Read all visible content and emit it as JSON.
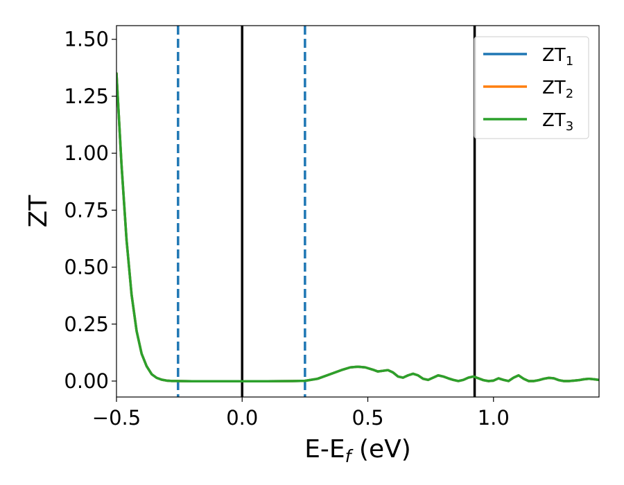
{
  "chart_data": {
    "type": "line",
    "title": "",
    "xlabel": "E-E",
    "xlabel_sub": "f",
    "xlabel_unit": " (eV)",
    "ylabel": "ZT",
    "xlim": [
      -0.5,
      1.42
    ],
    "ylim": [
      -0.07,
      1.56
    ],
    "xticks": [
      -0.5,
      0.0,
      0.5,
      1.0
    ],
    "xtick_labels": [
      "−0.5",
      "0.0",
      "0.5",
      "1.0"
    ],
    "yticks": [
      0.0,
      0.25,
      0.5,
      0.75,
      1.0,
      1.25,
      1.5
    ],
    "ytick_labels": [
      "0.00",
      "0.25",
      "0.50",
      "0.75",
      "1.00",
      "1.25",
      "1.50"
    ],
    "grid": false,
    "legend_position": "top-right",
    "vlines": [
      {
        "x": -0.255,
        "style": "dashed",
        "color": "#1f77b4"
      },
      {
        "x": 0.0,
        "style": "solid",
        "color": "#000000"
      },
      {
        "x": 0.25,
        "style": "dashed",
        "color": "#1f77b4"
      },
      {
        "x": 0.925,
        "style": "solid",
        "color": "#000000"
      }
    ],
    "series": [
      {
        "name": "ZT",
        "subscript": "1",
        "color": "#1f77b4",
        "x": [
          -0.5,
          -0.48,
          -0.46,
          -0.44,
          -0.42,
          -0.4,
          -0.38,
          -0.36,
          -0.34,
          -0.32,
          -0.3,
          -0.28,
          -0.25,
          -0.2,
          -0.1,
          0.0,
          0.1,
          0.2,
          0.25,
          0.3,
          0.35,
          0.4,
          0.43,
          0.46,
          0.49,
          0.52,
          0.54,
          0.56,
          0.58,
          0.6,
          0.62,
          0.64,
          0.66,
          0.68,
          0.7,
          0.72,
          0.74,
          0.76,
          0.78,
          0.8,
          0.82,
          0.84,
          0.86,
          0.88,
          0.9,
          0.92,
          0.94,
          0.96,
          0.98,
          1.0,
          1.02,
          1.04,
          1.06,
          1.08,
          1.1,
          1.12,
          1.14,
          1.16,
          1.18,
          1.2,
          1.22,
          1.24,
          1.26,
          1.28,
          1.3,
          1.32,
          1.34,
          1.36,
          1.38,
          1.4,
          1.42
        ],
        "y": [
          1.35,
          0.95,
          0.62,
          0.38,
          0.22,
          0.12,
          0.065,
          0.03,
          0.014,
          0.006,
          0.002,
          0.0005,
          0.0,
          -0.001,
          -0.001,
          -0.001,
          -0.001,
          0.0,
          0.001,
          0.01,
          0.03,
          0.05,
          0.06,
          0.063,
          0.06,
          0.05,
          0.042,
          0.045,
          0.048,
          0.038,
          0.02,
          0.015,
          0.025,
          0.032,
          0.025,
          0.01,
          0.005,
          0.015,
          0.025,
          0.02,
          0.012,
          0.005,
          0.0,
          0.005,
          0.015,
          0.02,
          0.012,
          0.004,
          0.0,
          0.002,
          0.012,
          0.005,
          0.0,
          0.015,
          0.025,
          0.01,
          0.0,
          0.0,
          0.004,
          0.01,
          0.014,
          0.012,
          0.004,
          0.0,
          0.0,
          0.002,
          0.004,
          0.008,
          0.01,
          0.008,
          0.005
        ]
      },
      {
        "name": "ZT",
        "subscript": "2",
        "color": "#ff7f0e",
        "x": [
          -0.5,
          -0.48,
          -0.46,
          -0.44,
          -0.42,
          -0.4,
          -0.38,
          -0.36,
          -0.34,
          -0.32,
          -0.3,
          -0.28,
          -0.25,
          -0.2,
          -0.1,
          0.0,
          0.1,
          0.2,
          0.25,
          0.3,
          0.35,
          0.4,
          0.43,
          0.46,
          0.49,
          0.52,
          0.54,
          0.56,
          0.58,
          0.6,
          0.62,
          0.64,
          0.66,
          0.68,
          0.7,
          0.72,
          0.74,
          0.76,
          0.78,
          0.8,
          0.82,
          0.84,
          0.86,
          0.88,
          0.9,
          0.92,
          0.94,
          0.96,
          0.98,
          1.0,
          1.02,
          1.04,
          1.06,
          1.08,
          1.1,
          1.12,
          1.14,
          1.16,
          1.18,
          1.2,
          1.22,
          1.24,
          1.26,
          1.28,
          1.3,
          1.32,
          1.34,
          1.36,
          1.38,
          1.4,
          1.42
        ],
        "y": [
          1.35,
          0.95,
          0.62,
          0.38,
          0.22,
          0.12,
          0.065,
          0.03,
          0.014,
          0.006,
          0.002,
          0.0005,
          0.0,
          -0.001,
          -0.001,
          -0.001,
          -0.001,
          0.0,
          0.001,
          0.01,
          0.03,
          0.05,
          0.06,
          0.063,
          0.06,
          0.05,
          0.042,
          0.045,
          0.048,
          0.038,
          0.02,
          0.015,
          0.025,
          0.032,
          0.025,
          0.01,
          0.005,
          0.015,
          0.025,
          0.02,
          0.012,
          0.005,
          0.0,
          0.005,
          0.015,
          0.02,
          0.012,
          0.004,
          0.0,
          0.002,
          0.012,
          0.005,
          0.0,
          0.015,
          0.025,
          0.01,
          0.0,
          0.0,
          0.004,
          0.01,
          0.014,
          0.012,
          0.004,
          0.0,
          0.0,
          0.002,
          0.004,
          0.008,
          0.01,
          0.008,
          0.005
        ]
      },
      {
        "name": "ZT",
        "subscript": "3",
        "color": "#2ca02c",
        "x": [
          -0.5,
          -0.48,
          -0.46,
          -0.44,
          -0.42,
          -0.4,
          -0.38,
          -0.36,
          -0.34,
          -0.32,
          -0.3,
          -0.28,
          -0.25,
          -0.2,
          -0.1,
          0.0,
          0.1,
          0.2,
          0.25,
          0.3,
          0.35,
          0.4,
          0.43,
          0.46,
          0.49,
          0.52,
          0.54,
          0.56,
          0.58,
          0.6,
          0.62,
          0.64,
          0.66,
          0.68,
          0.7,
          0.72,
          0.74,
          0.76,
          0.78,
          0.8,
          0.82,
          0.84,
          0.86,
          0.88,
          0.9,
          0.92,
          0.94,
          0.96,
          0.98,
          1.0,
          1.02,
          1.04,
          1.06,
          1.08,
          1.1,
          1.12,
          1.14,
          1.16,
          1.18,
          1.2,
          1.22,
          1.24,
          1.26,
          1.28,
          1.3,
          1.32,
          1.34,
          1.36,
          1.38,
          1.4,
          1.42
        ],
        "y": [
          1.35,
          0.95,
          0.62,
          0.38,
          0.22,
          0.12,
          0.065,
          0.03,
          0.014,
          0.006,
          0.002,
          0.0005,
          0.0,
          -0.001,
          -0.001,
          -0.001,
          -0.001,
          0.0,
          0.001,
          0.01,
          0.03,
          0.05,
          0.06,
          0.063,
          0.06,
          0.05,
          0.042,
          0.045,
          0.048,
          0.038,
          0.02,
          0.015,
          0.025,
          0.032,
          0.025,
          0.01,
          0.005,
          0.015,
          0.025,
          0.02,
          0.012,
          0.005,
          0.0,
          0.005,
          0.015,
          0.02,
          0.012,
          0.004,
          0.0,
          0.002,
          0.012,
          0.005,
          0.0,
          0.015,
          0.025,
          0.01,
          0.0,
          0.0,
          0.004,
          0.01,
          0.014,
          0.012,
          0.004,
          0.0,
          0.0,
          0.002,
          0.004,
          0.008,
          0.01,
          0.008,
          0.005
        ]
      }
    ]
  }
}
